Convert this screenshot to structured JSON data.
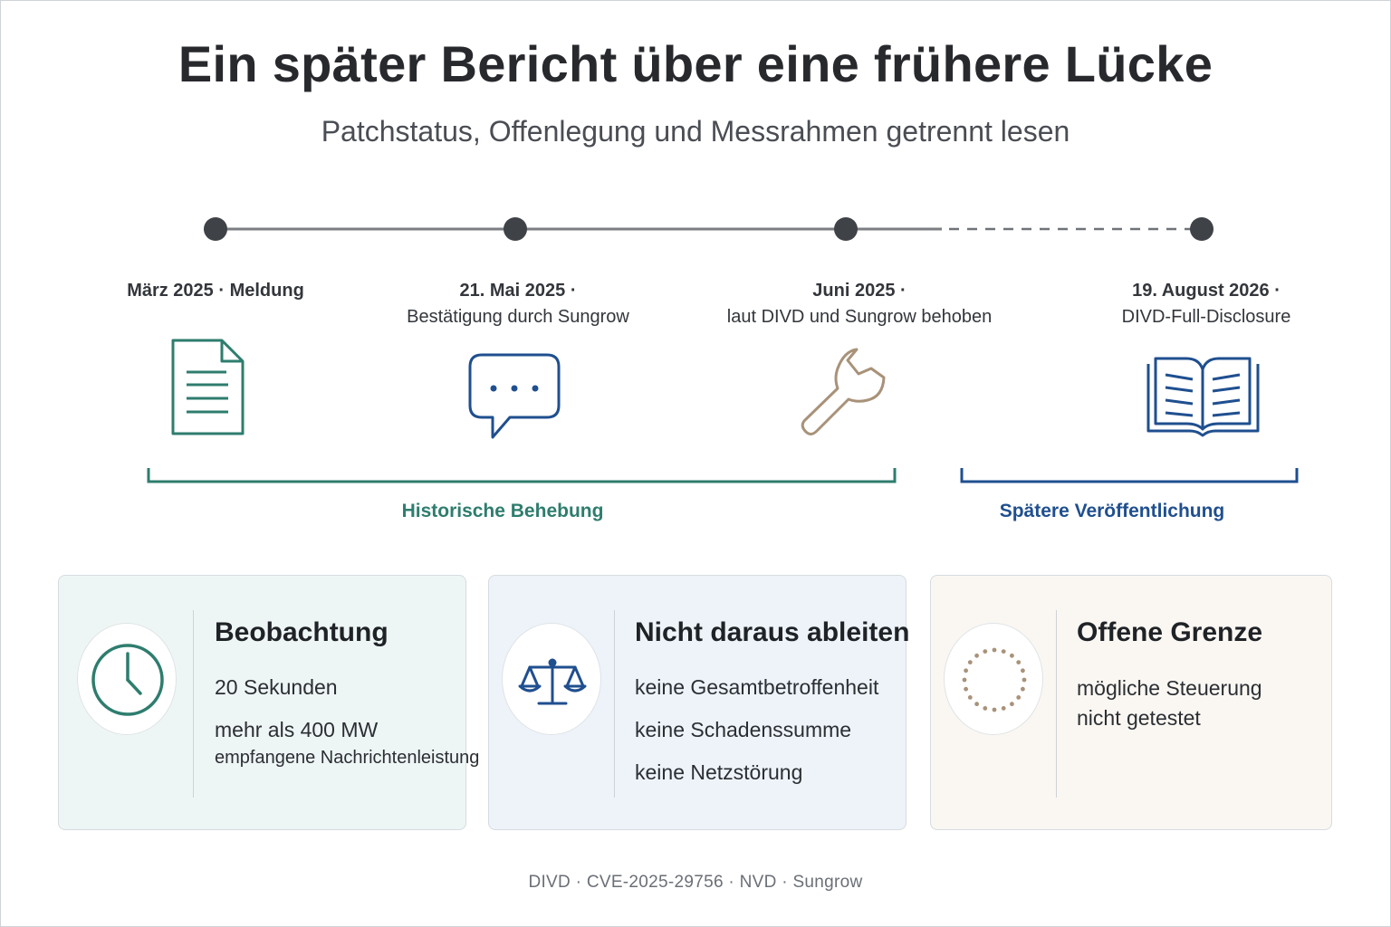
{
  "title": "Ein später Bericht über eine frühere Lücke",
  "subtitle": "Patchstatus, Offenlegung und Messrahmen getrennt lesen",
  "milestones": [
    {
      "date": "März 2025 · Meldung",
      "desc": "",
      "icon": "document-icon",
      "color": "#2e7d6e"
    },
    {
      "date": "21. Mai 2025 ·",
      "desc": "Bestätigung durch Sungrow",
      "icon": "chat-bubble-icon",
      "color": "#1f4f8f"
    },
    {
      "date": "Juni 2025 ·",
      "desc": "laut DIVD und Sungrow behoben",
      "icon": "wrench-icon",
      "color": "#a89279"
    },
    {
      "date": "19. August 2026 ·",
      "desc": "DIVD-Full-Disclosure",
      "icon": "open-book-icon",
      "color": "#1f4f8f"
    }
  ],
  "phases": [
    {
      "label": "Historische Behebung",
      "color": "#2e7d6e"
    },
    {
      "label": "Spätere Veröffentlichung",
      "color": "#1f4f8f"
    }
  ],
  "cards": [
    {
      "title": "Beobachtung",
      "lines": [
        "20 Sekunden",
        "mehr als 400 MW",
        "empfangene Nachrichtenleistung"
      ],
      "icon": "clock-icon",
      "bg": "#eef6f5",
      "accent": "#2e7d6e"
    },
    {
      "title": "Nicht daraus ableiten",
      "lines": [
        "keine Gesamtbetroffenheit",
        "keine Schadenssumme",
        "keine Netzstörung"
      ],
      "icon": "scales-icon",
      "bg": "#eef3fa",
      "accent": "#1f4f8f"
    },
    {
      "title": "Offene Grenze",
      "lines": [
        "mögliche Steuerung",
        "nicht getestet"
      ],
      "icon": "dotted-circle-icon",
      "bg": "#faf7f2",
      "accent": "#a89279"
    }
  ],
  "footer": "DIVD · CVE-2025-29756 · NVD · Sungrow"
}
